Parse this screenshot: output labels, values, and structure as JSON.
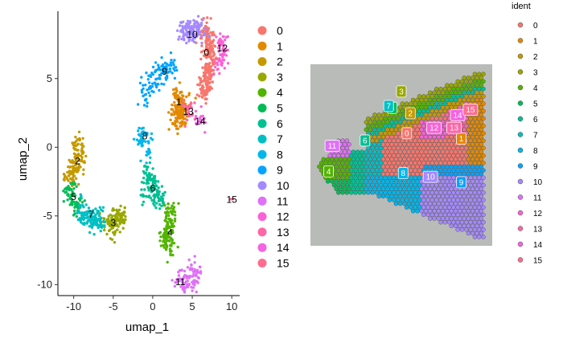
{
  "chart_data": [
    {
      "type": "scatter",
      "xlabel": "umap_1",
      "ylabel": "umap_2",
      "xlim": [
        -12,
        11
      ],
      "ylim": [
        -10.8,
        9.9
      ],
      "x_ticks": [
        -10,
        -5,
        0,
        5,
        10
      ],
      "y_ticks": [
        -10,
        -5,
        0,
        5
      ],
      "grid": false,
      "legend": "right",
      "legend_title": "",
      "clusters": [
        {
          "name": "0",
          "color": "#F8766D",
          "center": [
            7.0,
            6.5
          ],
          "label_at": [
            6.8,
            6.9
          ]
        },
        {
          "name": "1",
          "color": "#E38900",
          "center": [
            3.6,
            3.2
          ],
          "label_at": [
            3.3,
            3.3
          ]
        },
        {
          "name": "2",
          "color": "#C49A00",
          "center": [
            -9.7,
            -1.0
          ],
          "label_at": [
            -9.5,
            -1.0
          ]
        },
        {
          "name": "3",
          "color": "#99A800",
          "center": [
            -5.2,
            -5.4
          ],
          "label_at": [
            -5.0,
            -5.5
          ]
        },
        {
          "name": "4",
          "color": "#53B400",
          "center": [
            2.0,
            -5.5
          ],
          "label_at": [
            2.2,
            -6.2
          ]
        },
        {
          "name": "5",
          "color": "#00BC56",
          "center": [
            -10.0,
            -3.5
          ],
          "label_at": [
            -10.0,
            -3.6
          ]
        },
        {
          "name": "6",
          "color": "#00C094",
          "center": [
            -0.2,
            -2.8
          ],
          "label_at": [
            0.0,
            -3.0
          ]
        },
        {
          "name": "7",
          "color": "#00BFC4",
          "center": [
            -8.0,
            -5.0
          ],
          "label_at": [
            -7.8,
            -4.9
          ]
        },
        {
          "name": "8",
          "color": "#00B6EB",
          "center": [
            -1.2,
            0.8
          ],
          "label_at": [
            -1.0,
            0.8
          ]
        },
        {
          "name": "9",
          "color": "#06A4FF",
          "center": [
            1.5,
            5.5
          ],
          "label_at": [
            1.5,
            5.5
          ]
        },
        {
          "name": "10",
          "color": "#A58AFF",
          "center": [
            5.0,
            8.0
          ],
          "label_at": [
            5.0,
            8.2
          ]
        },
        {
          "name": "11",
          "color": "#DF70F8",
          "center": [
            3.8,
            -9.8
          ],
          "label_at": [
            3.5,
            -9.8
          ]
        },
        {
          "name": "12",
          "color": "#FB61D7",
          "center": [
            8.8,
            7.0
          ],
          "label_at": [
            8.8,
            7.2
          ]
        },
        {
          "name": "13",
          "color": "#FF66A8",
          "center": [
            4.3,
            2.7
          ],
          "label_at": [
            4.5,
            2.6
          ]
        },
        {
          "name": "14",
          "color": "#F564E3",
          "center": [
            5.8,
            2.0
          ],
          "label_at": [
            6.0,
            1.9
          ]
        },
        {
          "name": "15",
          "color": "#FF6C91",
          "center": [
            10.0,
            -3.8
          ],
          "label_at": [
            10.0,
            -3.8
          ]
        }
      ]
    },
    {
      "type": "scatter",
      "xlabel": "",
      "ylabel": "",
      "grid": false,
      "legend": "right",
      "legend_title": "ident",
      "labels": [
        {
          "name": "0",
          "pos": [
            0.53,
            0.38
          ]
        },
        {
          "name": "1",
          "pos": [
            0.83,
            0.41
          ]
        },
        {
          "name": "2",
          "pos": [
            0.55,
            0.27
          ]
        },
        {
          "name": "3",
          "pos": [
            0.5,
            0.15
          ]
        },
        {
          "name": "4",
          "pos": [
            0.1,
            0.59
          ]
        },
        {
          "name": "5",
          "pos": [
            0.45,
            0.24
          ]
        },
        {
          "name": "6",
          "pos": [
            0.3,
            0.42
          ]
        },
        {
          "name": "7",
          "pos": [
            0.43,
            0.23
          ]
        },
        {
          "name": "8",
          "pos": [
            0.51,
            0.6
          ]
        },
        {
          "name": "9",
          "pos": [
            0.83,
            0.65
          ]
        },
        {
          "name": "10",
          "pos": [
            0.66,
            0.62
          ]
        },
        {
          "name": "11",
          "pos": [
            0.12,
            0.45
          ]
        },
        {
          "name": "12",
          "pos": [
            0.68,
            0.35
          ]
        },
        {
          "name": "13",
          "pos": [
            0.79,
            0.35
          ]
        },
        {
          "name": "14",
          "pos": [
            0.81,
            0.28
          ]
        },
        {
          "name": "15",
          "pos": [
            0.88,
            0.25
          ]
        }
      ]
    }
  ],
  "palette": [
    "#F8766D",
    "#E38900",
    "#C49A00",
    "#99A800",
    "#53B400",
    "#00BC56",
    "#00C094",
    "#00BFC4",
    "#00B6EB",
    "#06A4FF",
    "#A58AFF",
    "#DF70F8",
    "#FB61D7",
    "#FF66A8",
    "#F564E3",
    "#FF6C91"
  ]
}
